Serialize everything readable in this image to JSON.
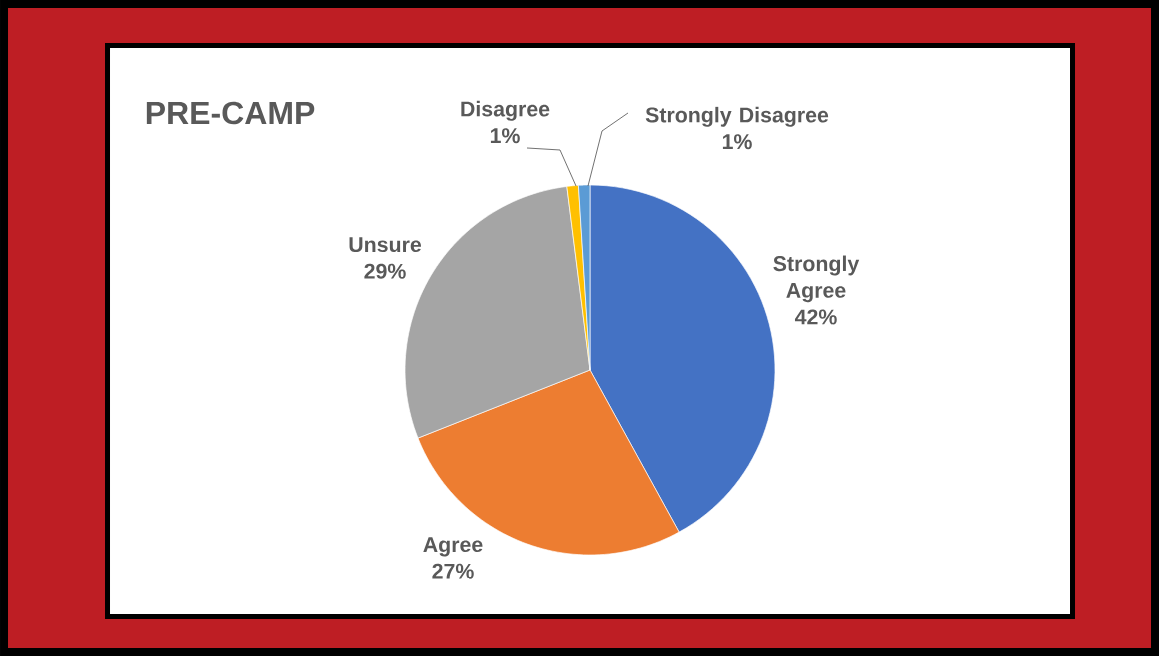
{
  "chart_data": {
    "type": "pie",
    "title": "PRE-CAMP",
    "categories": [
      "Strongly Agree",
      "Agree",
      "Unsure",
      "Disagree",
      "Strongly Disagree"
    ],
    "values": [
      42,
      27,
      29,
      1,
      1
    ],
    "colors": [
      "#4472c4",
      "#ed7d31",
      "#a5a5a5",
      "#ffc000",
      "#5b9bd5"
    ],
    "value_labels": [
      "42%",
      "27%",
      "29%",
      "1%",
      "1%"
    ]
  }
}
